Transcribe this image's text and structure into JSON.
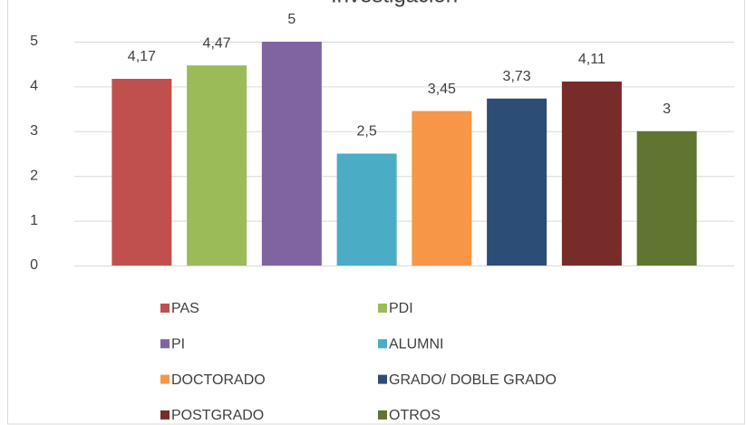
{
  "chart_data": {
    "type": "bar",
    "title": "Investigación",
    "series": [
      {
        "name": "PAS",
        "color": "#c0504d",
        "values": [
          4.17
        ],
        "value_labels": [
          "4,17"
        ]
      },
      {
        "name": "PDI",
        "color": "#9bbb59",
        "values": [
          4.47
        ],
        "value_labels": [
          "4,47"
        ]
      },
      {
        "name": "PI",
        "color": "#8064a2",
        "values": [
          5
        ],
        "value_labels": [
          "5"
        ]
      },
      {
        "name": "ALUMNI",
        "color": "#4bacc6",
        "values": [
          2.5
        ],
        "value_labels": [
          "2,5"
        ]
      },
      {
        "name": "DOCTORADO",
        "color": "#f79646",
        "values": [
          3.45
        ],
        "value_labels": [
          "3,45"
        ]
      },
      {
        "name": "GRADO/ DOBLE GRADO",
        "color": "#2c4d75",
        "values": [
          3.73
        ],
        "value_labels": [
          "3,73"
        ]
      },
      {
        "name": "POSTGRADO",
        "color": "#772c2a",
        "values": [
          4.11
        ],
        "value_labels": [
          "4,11"
        ]
      },
      {
        "name": "OTROS",
        "color": "#5f7530",
        "values": [
          3
        ],
        "value_labels": [
          "3"
        ]
      }
    ],
    "ylim": [
      0,
      5
    ],
    "yticks": [
      0,
      1,
      2,
      3,
      4,
      5
    ],
    "grid": true,
    "legend": "bottom"
  }
}
